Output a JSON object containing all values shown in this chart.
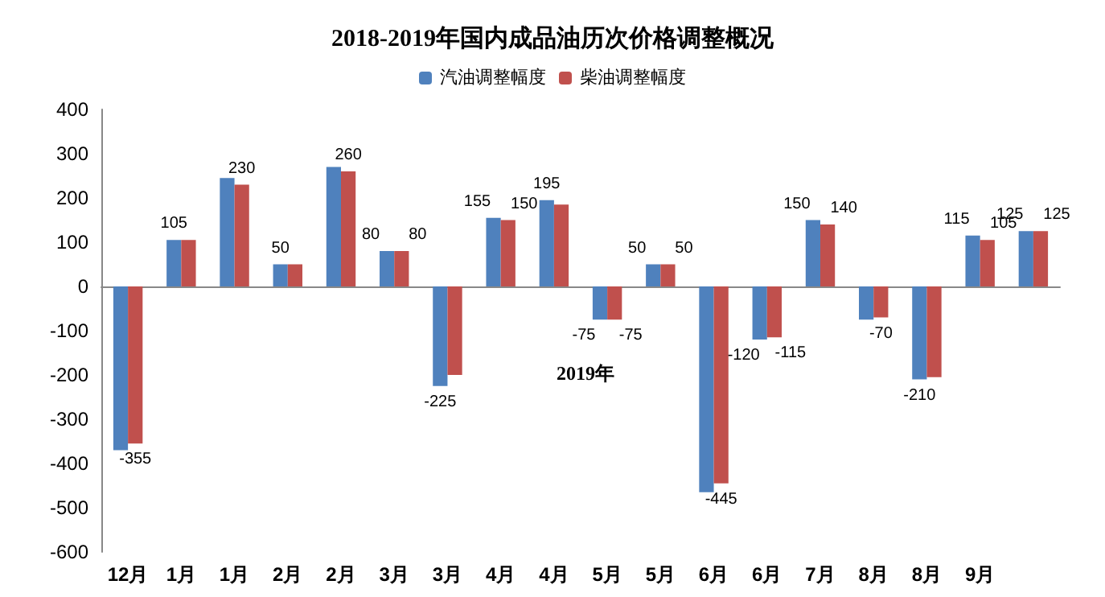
{
  "chart_data": {
    "type": "bar",
    "title": "2018-2019年国内成品油历次价格调整概况",
    "categories": [
      "12月",
      "1月",
      "1月",
      "2月",
      "2月",
      "3月",
      "3月",
      "4月",
      "4月",
      "5月",
      "5月",
      "6月",
      "6月",
      "7月",
      "8月",
      "8月",
      "9月",
      null
    ],
    "series": [
      {
        "name": "汽油调整幅度",
        "color": "#4f81bd",
        "values": [
          -370,
          105,
          245,
          50,
          270,
          80,
          -225,
          155,
          195,
          -75,
          50,
          -465,
          -120,
          150,
          -75,
          -210,
          115,
          125
        ],
        "value_labels": [
          null,
          "105",
          null,
          "50",
          null,
          "80",
          "-225",
          "155",
          "195",
          "-75",
          "50",
          null,
          "-120",
          "150",
          null,
          "-210",
          "115",
          "125"
        ]
      },
      {
        "name": "柴油调整幅度",
        "color": "#c0504d",
        "values": [
          -355,
          105,
          230,
          50,
          260,
          80,
          -200,
          150,
          185,
          -75,
          50,
          -445,
          -115,
          140,
          -70,
          -205,
          105,
          125
        ],
        "value_labels": [
          "-355",
          null,
          "230",
          null,
          "260",
          "80",
          null,
          "150",
          null,
          "-75",
          "50",
          "-445",
          "-115",
          "140",
          "-70",
          null,
          "105",
          "125"
        ]
      }
    ],
    "ylim": [
      -600,
      400
    ],
    "yticks": [
      -600,
      -500,
      -400,
      -300,
      -200,
      -100,
      0,
      100,
      200,
      300,
      400
    ],
    "legend": "top",
    "annotations": [
      "2019年"
    ]
  }
}
